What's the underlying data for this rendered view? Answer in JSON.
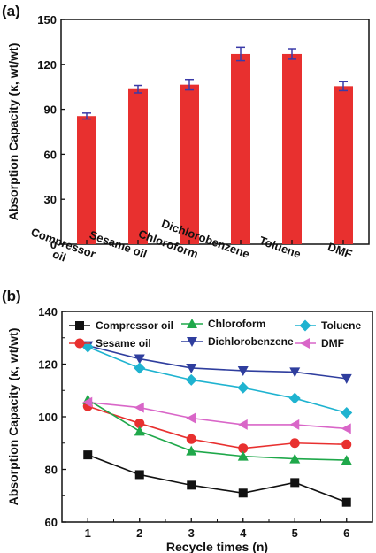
{
  "chart_data": [
    {
      "type": "bar",
      "panel_label": "(a)",
      "categories": [
        "Compressor\noil",
        "Sesame oil",
        "Chloroform",
        "Dichlorobenzene",
        "Toluene",
        "DMF"
      ],
      "values": [
        85.5,
        103.5,
        106.5,
        127,
        127,
        105.5
      ],
      "errors": [
        2,
        2.5,
        3.5,
        4.5,
        3.5,
        3
      ],
      "xlabel": "",
      "ylabel": "Absorption Capacity (κ, wt/wt)",
      "ylim": [
        0,
        150
      ],
      "yticks": [
        0,
        30,
        60,
        90,
        120,
        150
      ],
      "bar_color": "#e8302f",
      "error_color": "#3a3aa8",
      "grid": false
    },
    {
      "type": "line",
      "panel_label": "(b)",
      "x": [
        1,
        2,
        3,
        4,
        5,
        6
      ],
      "xlabel": "Recycle times (n)",
      "ylabel": "Absorption Capacity (κ, wt/wt)",
      "xlim": [
        0.5,
        6.5
      ],
      "ylim": [
        60,
        140
      ],
      "xticks": [
        1,
        2,
        3,
        4,
        5,
        6
      ],
      "yticks": [
        60,
        80,
        100,
        120,
        140
      ],
      "grid": false,
      "legend_position": "top",
      "series": [
        {
          "name": "Compressor oil",
          "color": "#111111",
          "marker": "square",
          "values": [
            85.5,
            78,
            74,
            71,
            75,
            67.5
          ]
        },
        {
          "name": "Sesame oil",
          "color": "#e8302f",
          "marker": "circle",
          "values": [
            104,
            97.5,
            91.5,
            88,
            90,
            89.5
          ]
        },
        {
          "name": "Chloroform",
          "color": "#1fa84a",
          "marker": "triangle-up",
          "values": [
            106.5,
            94.5,
            87,
            85,
            84,
            83.5
          ]
        },
        {
          "name": "Dichlorobenzene",
          "color": "#2f3e9e",
          "marker": "triangle-down",
          "values": [
            127,
            122,
            118.5,
            117.5,
            117,
            114.5
          ]
        },
        {
          "name": "Toluene",
          "color": "#1fb3d0",
          "marker": "diamond",
          "values": [
            126.5,
            118.5,
            114,
            111,
            107,
            101.5
          ]
        },
        {
          "name": "DMF",
          "color": "#d966c8",
          "marker": "triangle-left",
          "values": [
            105.5,
            103.5,
            99.5,
            97,
            97,
            95.5
          ]
        }
      ]
    }
  ]
}
